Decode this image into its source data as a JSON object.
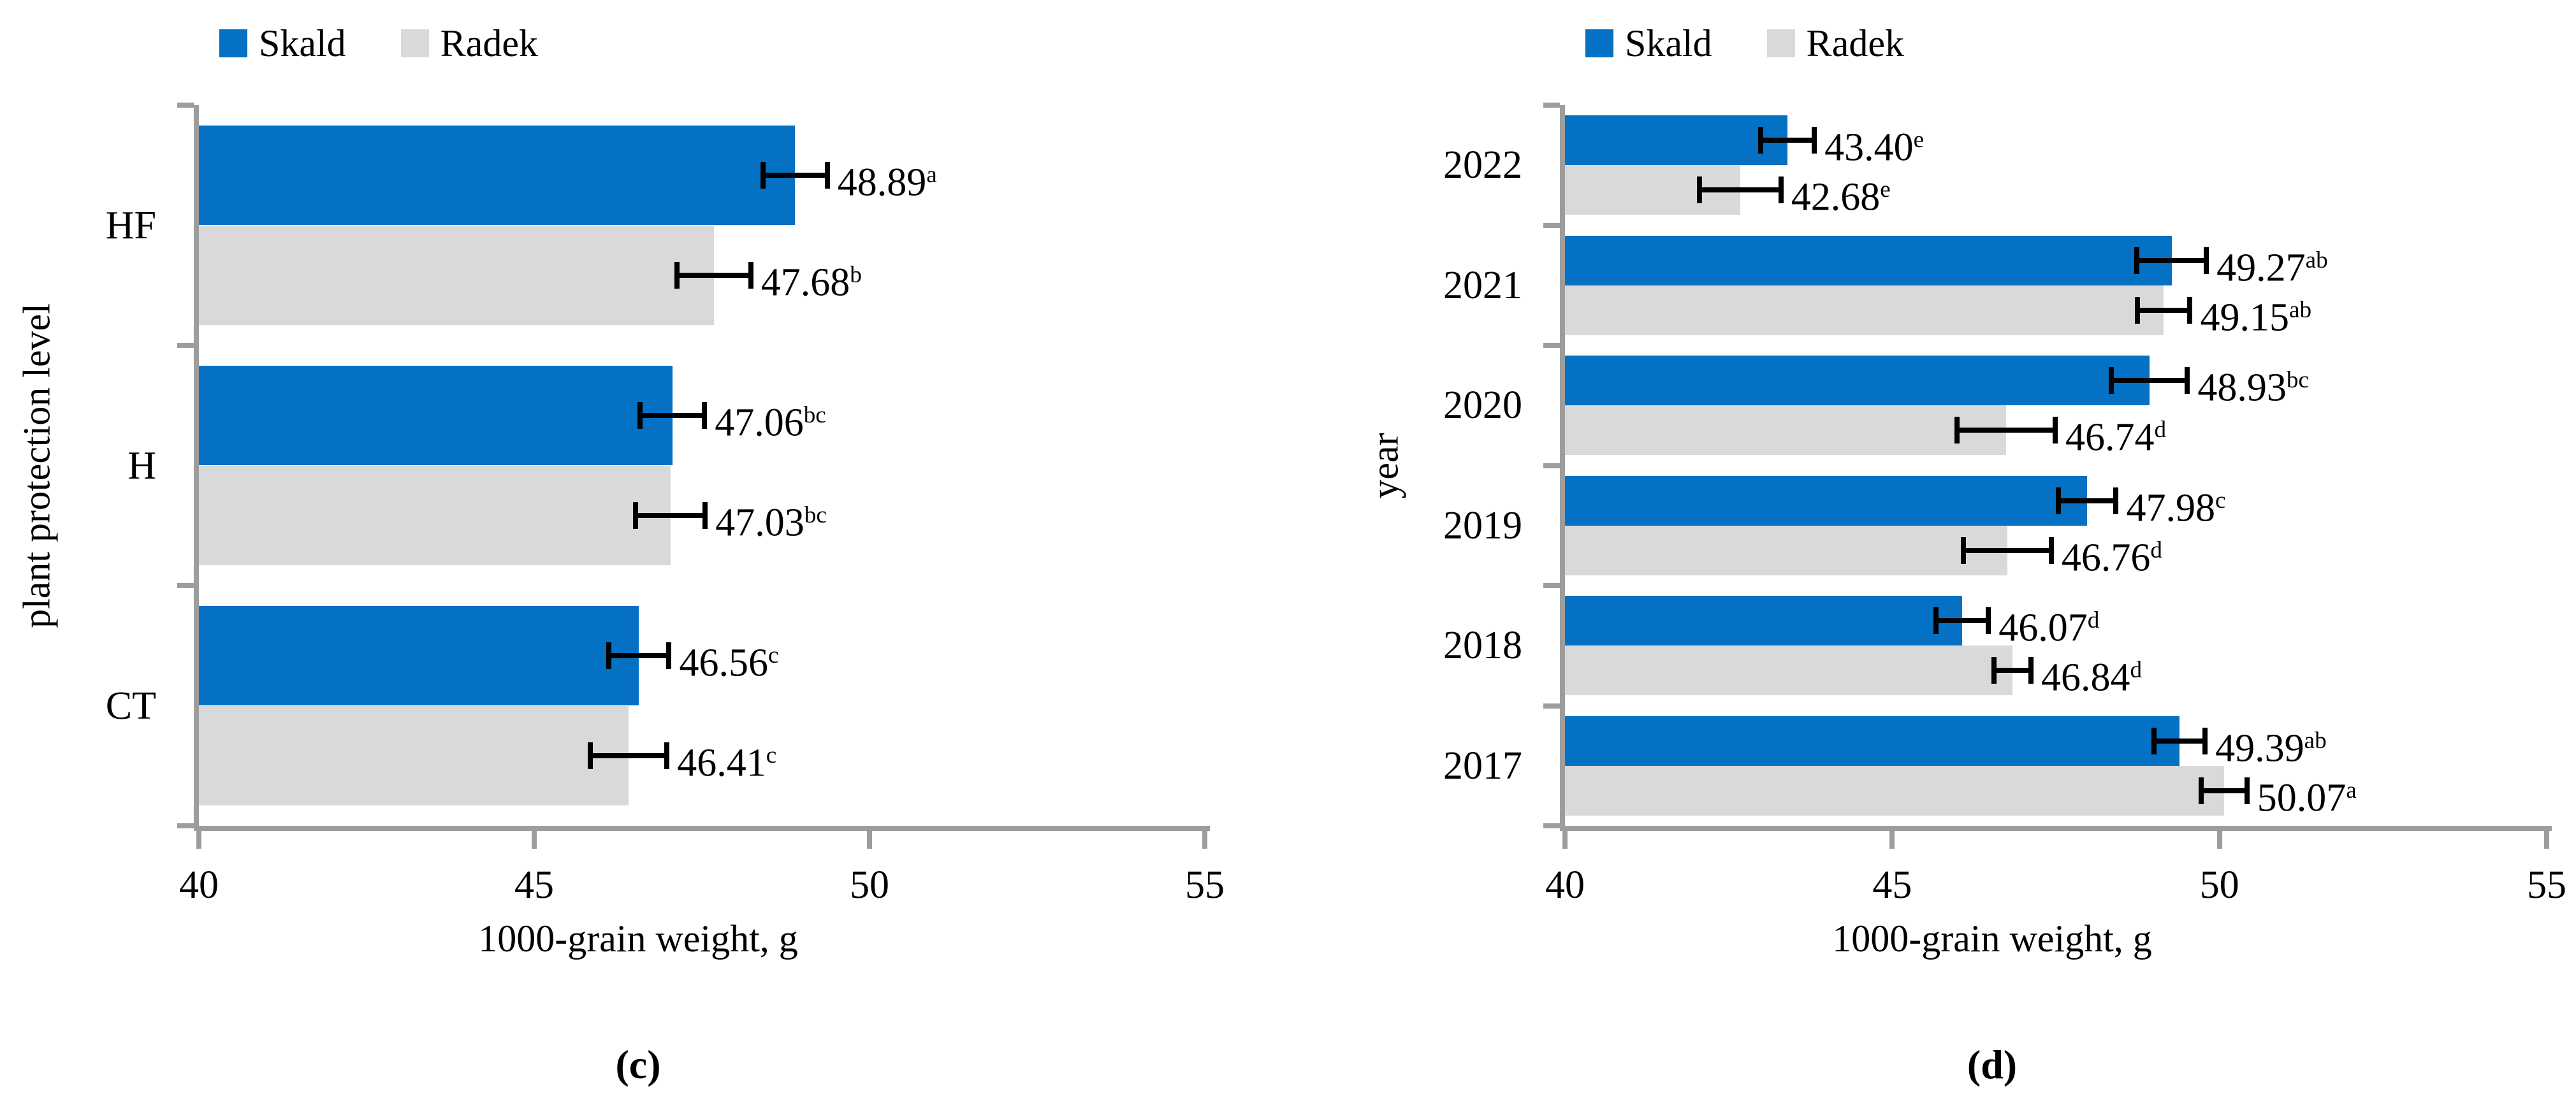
{
  "colors": {
    "skald_blue": "#0471C4",
    "radek_gray": "#D9D9D9",
    "axis_gray": "#9D9D9D",
    "error_black": "#000000",
    "background": "#FFFFFF"
  },
  "chart_data": [
    {
      "type": "bar",
      "orientation": "horizontal",
      "panel_label": "(c)",
      "xlabel": "1000-grain weight, g",
      "ylabel": "plant protection level",
      "xlim": [
        40,
        55
      ],
      "xticks": [
        40,
        45,
        50,
        55
      ],
      "grid": false,
      "legend_position": "top-left",
      "categories": [
        "HF",
        "H",
        "CT"
      ],
      "series": [
        {
          "name": "Skald",
          "color": "#0471C4",
          "values": [
            48.89,
            47.06,
            46.56
          ],
          "value_labels": [
            "48.89",
            "47.06",
            "46.56"
          ],
          "sig": [
            "a",
            "bc",
            "c"
          ],
          "errors": [
            0.48,
            0.48,
            0.45
          ]
        },
        {
          "name": "Radek",
          "color": "#D9D9D9",
          "values": [
            47.68,
            47.03,
            46.41
          ],
          "value_labels": [
            "47.68",
            "47.03",
            "46.41"
          ],
          "sig": [
            "b",
            "bc",
            "c"
          ],
          "errors": [
            0.55,
            0.52,
            0.57
          ]
        }
      ]
    },
    {
      "type": "bar",
      "orientation": "horizontal",
      "panel_label": "(d)",
      "xlabel": "1000-grain weight, g",
      "ylabel": "year",
      "xlim": [
        40,
        55
      ],
      "xticks": [
        40,
        45,
        50,
        55
      ],
      "grid": false,
      "legend_position": "top-left",
      "categories": [
        "2022",
        "2021",
        "2020",
        "2019",
        "2018",
        "2017"
      ],
      "series": [
        {
          "name": "Skald",
          "color": "#0471C4",
          "values": [
            43.4,
            49.27,
            48.93,
            47.98,
            46.07,
            49.39
          ],
          "value_labels": [
            "43.40",
            "49.27",
            "48.93",
            "47.98",
            "46.07",
            "49.39"
          ],
          "sig": [
            "e",
            "ab",
            "bc",
            "c",
            "d",
            "ab"
          ],
          "errors": [
            0.41,
            0.53,
            0.58,
            0.44,
            0.4,
            0.39
          ]
        },
        {
          "name": "Radek",
          "color": "#D9D9D9",
          "values": [
            42.68,
            49.15,
            46.74,
            46.76,
            46.84,
            50.07
          ],
          "value_labels": [
            "42.68",
            "49.15",
            "46.74",
            "46.76",
            "46.84",
            "50.07"
          ],
          "sig": [
            "e",
            "ab",
            "d",
            "d",
            "d",
            "a"
          ],
          "errors": [
            0.62,
            0.4,
            0.75,
            0.67,
            0.28,
            0.35
          ]
        }
      ]
    }
  ]
}
